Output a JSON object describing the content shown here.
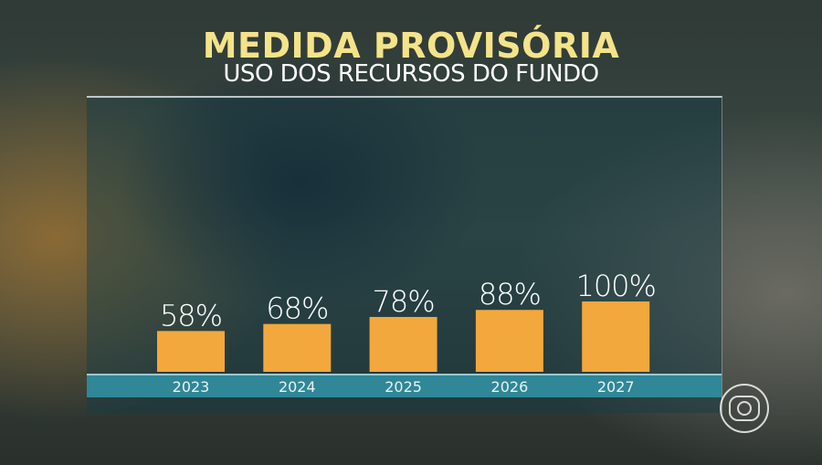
{
  "chart_data": {
    "type": "bar",
    "title": "MEDIDA PROVISÓRIA",
    "subtitle": "USO DOS RECURSOS DO FUNDO",
    "categories": [
      "2023",
      "2024",
      "2025",
      "2026",
      "2027"
    ],
    "values": [
      58,
      68,
      78,
      88,
      100
    ],
    "data_labels": [
      "58%",
      "68%",
      "78%",
      "88%",
      "100%"
    ],
    "ylim": [
      0,
      100
    ],
    "grid": false,
    "bar_color": "#f2a83c",
    "axis_strip_color": "#2f8797",
    "title_color": "#f5e38a"
  },
  "broadcaster_logo": "globo-logo"
}
